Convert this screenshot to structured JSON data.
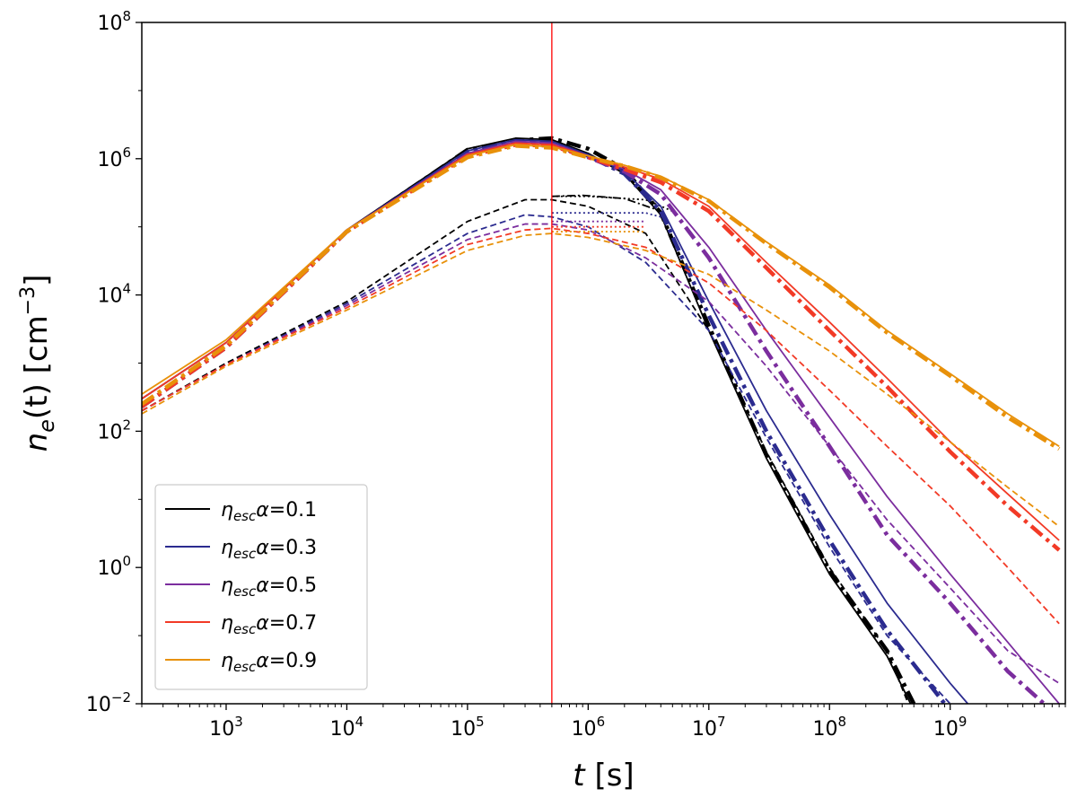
{
  "chart_data": {
    "type": "line",
    "xlabel": {
      "var": "t",
      "unit": " [s]"
    },
    "ylabel": {
      "var": "n",
      "sub": "e",
      "arg": "(t)",
      "unit": " [cm",
      "exp": "−3",
      "close": "]"
    },
    "x_scale": "log",
    "y_scale": "log",
    "xlim": [
      200,
      9000000000
    ],
    "ylim": [
      0.01,
      100000000
    ],
    "x_ticks": [
      {
        "value": 1000,
        "base": "10",
        "exp": "3"
      },
      {
        "value": 10000,
        "base": "10",
        "exp": "4"
      },
      {
        "value": 100000,
        "base": "10",
        "exp": "5"
      },
      {
        "value": 1000000,
        "base": "10",
        "exp": "6"
      },
      {
        "value": 10000000,
        "base": "10",
        "exp": "7"
      },
      {
        "value": 100000000,
        "base": "10",
        "exp": "8"
      },
      {
        "value": 1000000000,
        "base": "10",
        "exp": "9"
      }
    ],
    "y_ticks": [
      {
        "value": 0.01,
        "base": "10",
        "exp": "−2"
      },
      {
        "value": 1,
        "base": "10",
        "exp": "0"
      },
      {
        "value": 100,
        "base": "10",
        "exp": "2"
      },
      {
        "value": 10000,
        "base": "10",
        "exp": "4"
      },
      {
        "value": 1000000,
        "base": "10",
        "exp": "6"
      },
      {
        "value": 100000000,
        "base": "10",
        "exp": "8"
      }
    ],
    "grid": false,
    "legend_position": "lower-left",
    "vline": {
      "x": 500000,
      "color": "#ff0000"
    },
    "series": [
      {
        "name": "0.1",
        "color": "#000000",
        "solid": [
          [
            200,
            300
          ],
          [
            1000,
            2000
          ],
          [
            10000,
            90000
          ],
          [
            100000,
            1400000
          ],
          [
            250000,
            2000000
          ],
          [
            500000,
            1900000
          ],
          [
            1000000,
            1200000
          ],
          [
            2000000,
            600000
          ],
          [
            4000000,
            150000
          ],
          [
            10000000,
            3000
          ],
          [
            30000000,
            40
          ],
          [
            100000000,
            0.8
          ],
          [
            300000000,
            0.05
          ],
          [
            470000000,
            0.01
          ]
        ],
        "dashdot": [
          [
            200,
            230
          ],
          [
            1000,
            1700
          ],
          [
            10000,
            85000
          ],
          [
            100000,
            1350000
          ],
          [
            250000,
            1850000
          ],
          [
            500000,
            2000000
          ],
          [
            1000000,
            1400000
          ],
          [
            2000000,
            700000
          ],
          [
            4000000,
            160000
          ],
          [
            10000000,
            3500
          ],
          [
            30000000,
            45
          ],
          [
            100000000,
            0.9
          ],
          [
            300000000,
            0.06
          ],
          [
            500000000,
            0.01
          ]
        ],
        "dashed": [
          [
            200,
            200
          ],
          [
            1000,
            1000
          ],
          [
            10000,
            8000
          ],
          [
            100000,
            120000
          ],
          [
            300000,
            250000
          ],
          [
            500000,
            250000
          ],
          [
            1000000,
            200000
          ],
          [
            3000000,
            80000
          ],
          [
            10000000,
            3000
          ],
          [
            30000000,
            50
          ],
          [
            100000000,
            1
          ],
          [
            300000000,
            0.06
          ],
          [
            450000000,
            0.01
          ]
        ],
        "dotted": [
          [
            500000,
            280000
          ],
          [
            1000000,
            280000
          ],
          [
            3000000,
            250000
          ],
          [
            5000000,
            170000
          ]
        ],
        "dashdot_thin": [
          [
            500000,
            280000
          ],
          [
            900000,
            290000
          ],
          [
            2000000,
            260000
          ],
          [
            4000000,
            170000
          ]
        ]
      },
      {
        "name": "0.3",
        "color": "#2b2b8f",
        "solid": [
          [
            200,
            300
          ],
          [
            1000,
            2000
          ],
          [
            10000,
            90000
          ],
          [
            100000,
            1300000
          ],
          [
            250000,
            1900000
          ],
          [
            500000,
            1800000
          ],
          [
            1000000,
            1150000
          ],
          [
            2000000,
            650000
          ],
          [
            4000000,
            200000
          ],
          [
            10000000,
            8000
          ],
          [
            30000000,
            200
          ],
          [
            100000000,
            6
          ],
          [
            300000000,
            0.3
          ],
          [
            1000000000,
            0.02
          ],
          [
            1400000000,
            0.01
          ]
        ],
        "dashdot": [
          [
            200,
            230
          ],
          [
            1000,
            1700
          ],
          [
            10000,
            85000
          ],
          [
            100000,
            1250000
          ],
          [
            250000,
            1800000
          ],
          [
            500000,
            1700000
          ],
          [
            1000000,
            1100000
          ],
          [
            2000000,
            600000
          ],
          [
            4000000,
            170000
          ],
          [
            10000000,
            5000
          ],
          [
            30000000,
            100
          ],
          [
            100000000,
            2.5
          ],
          [
            300000000,
            0.12
          ],
          [
            900000000,
            0.01
          ]
        ],
        "dashed": [
          [
            200,
            200
          ],
          [
            1000,
            950
          ],
          [
            10000,
            7500
          ],
          [
            100000,
            80000
          ],
          [
            300000,
            150000
          ],
          [
            500000,
            140000
          ],
          [
            1000000,
            100000
          ],
          [
            3000000,
            30000
          ],
          [
            10000000,
            3000
          ],
          [
            30000000,
            80
          ],
          [
            100000000,
            2
          ],
          [
            300000000,
            0.1
          ],
          [
            1000000000,
            0.01
          ]
        ],
        "dotted": [
          [
            500000,
            160000
          ],
          [
            1000000,
            160000
          ],
          [
            3000000,
            160000
          ],
          [
            4000000,
            140000
          ]
        ]
      },
      {
        "name": "0.5",
        "color": "#7b2d9e",
        "solid": [
          [
            200,
            300
          ],
          [
            1000,
            2000
          ],
          [
            10000,
            90000
          ],
          [
            100000,
            1200000
          ],
          [
            250000,
            1800000
          ],
          [
            500000,
            1700000
          ],
          [
            1000000,
            1100000
          ],
          [
            2000000,
            700000
          ],
          [
            4000000,
            350000
          ],
          [
            10000000,
            50000
          ],
          [
            30000000,
            3000
          ],
          [
            100000000,
            160
          ],
          [
            300000000,
            11
          ],
          [
            1000000000,
            0.8
          ],
          [
            3000000000,
            0.08
          ],
          [
            8000000000,
            0.01
          ]
        ],
        "dashdot": [
          [
            200,
            230
          ],
          [
            1000,
            1700
          ],
          [
            10000,
            85000
          ],
          [
            100000,
            1150000
          ],
          [
            250000,
            1700000
          ],
          [
            500000,
            1600000
          ],
          [
            1000000,
            1050000
          ],
          [
            2000000,
            650000
          ],
          [
            4000000,
            300000
          ],
          [
            10000000,
            35000
          ],
          [
            30000000,
            1500
          ],
          [
            100000000,
            60
          ],
          [
            300000000,
            3
          ],
          [
            1000000000,
            0.3
          ],
          [
            3000000000,
            0.03
          ],
          [
            6000000000,
            0.01
          ]
        ],
        "dashed": [
          [
            200,
            200
          ],
          [
            1000,
            950
          ],
          [
            10000,
            7000
          ],
          [
            100000,
            65000
          ],
          [
            300000,
            110000
          ],
          [
            500000,
            110000
          ],
          [
            1000000,
            90000
          ],
          [
            3000000,
            35000
          ],
          [
            10000000,
            8000
          ],
          [
            30000000,
            900
          ],
          [
            100000000,
            60
          ],
          [
            300000000,
            5
          ],
          [
            1000000000,
            0.5
          ],
          [
            3000000000,
            0.06
          ],
          [
            8000000000,
            0.02
          ]
        ],
        "dotted": [
          [
            500000,
            120000
          ],
          [
            1000000,
            120000
          ],
          [
            3000000,
            120000
          ]
        ]
      },
      {
        "name": "0.7",
        "color": "#f23a26",
        "solid": [
          [
            200,
            300
          ],
          [
            1000,
            2000
          ],
          [
            10000,
            90000
          ],
          [
            100000,
            1150000
          ],
          [
            250000,
            1700000
          ],
          [
            500000,
            1600000
          ],
          [
            1000000,
            1100000
          ],
          [
            2000000,
            750000
          ],
          [
            4000000,
            500000
          ],
          [
            10000000,
            200000
          ],
          [
            30000000,
            30000
          ],
          [
            100000000,
            4000
          ],
          [
            300000000,
            600
          ],
          [
            1000000000,
            70
          ],
          [
            3000000000,
            12
          ],
          [
            8000000000,
            2.5
          ]
        ],
        "dashdot": [
          [
            200,
            230
          ],
          [
            1000,
            1700
          ],
          [
            10000,
            85000
          ],
          [
            100000,
            1100000
          ],
          [
            250000,
            1600000
          ],
          [
            500000,
            1550000
          ],
          [
            1000000,
            1050000
          ],
          [
            2000000,
            700000
          ],
          [
            4000000,
            450000
          ],
          [
            10000000,
            170000
          ],
          [
            30000000,
            25000
          ],
          [
            100000000,
            3000
          ],
          [
            300000000,
            450
          ],
          [
            1000000000,
            50
          ],
          [
            3000000000,
            8
          ],
          [
            8000000000,
            1.8
          ]
        ],
        "dashed": [
          [
            200,
            200
          ],
          [
            1000,
            950
          ],
          [
            10000,
            6500
          ],
          [
            100000,
            55000
          ],
          [
            300000,
            90000
          ],
          [
            500000,
            95000
          ],
          [
            1000000,
            80000
          ],
          [
            3000000,
            50000
          ],
          [
            10000000,
            15000
          ],
          [
            30000000,
            3000
          ],
          [
            100000000,
            400
          ],
          [
            300000000,
            60
          ],
          [
            1000000000,
            8
          ],
          [
            3000000000,
            1
          ],
          [
            8000000000,
            0.15
          ]
        ],
        "dotted": [
          [
            500000,
            100000
          ],
          [
            1000000,
            100000
          ],
          [
            3000000,
            100000
          ]
        ]
      },
      {
        "name": "0.9",
        "color": "#e8910a",
        "solid": [
          [
            200,
            350
          ],
          [
            1000,
            2200
          ],
          [
            10000,
            90000
          ],
          [
            100000,
            1100000
          ],
          [
            250000,
            1600000
          ],
          [
            500000,
            1500000
          ],
          [
            1000000,
            1100000
          ],
          [
            2000000,
            800000
          ],
          [
            4000000,
            550000
          ],
          [
            10000000,
            250000
          ],
          [
            30000000,
            60000
          ],
          [
            100000000,
            14000
          ],
          [
            300000000,
            3000
          ],
          [
            1000000000,
            700
          ],
          [
            3000000000,
            180
          ],
          [
            8000000000,
            60
          ]
        ],
        "dashdot": [
          [
            200,
            250
          ],
          [
            1000,
            1800
          ],
          [
            10000,
            85000
          ],
          [
            100000,
            1050000
          ],
          [
            250000,
            1550000
          ],
          [
            500000,
            1450000
          ],
          [
            1000000,
            1050000
          ],
          [
            2000000,
            780000
          ],
          [
            4000000,
            530000
          ],
          [
            10000000,
            240000
          ],
          [
            30000000,
            57000
          ],
          [
            100000000,
            13000
          ],
          [
            300000000,
            2800
          ],
          [
            1000000000,
            650
          ],
          [
            3000000000,
            160
          ],
          [
            8000000000,
            55
          ]
        ],
        "dashed": [
          [
            200,
            180
          ],
          [
            1000,
            900
          ],
          [
            10000,
            6000
          ],
          [
            100000,
            45000
          ],
          [
            300000,
            75000
          ],
          [
            500000,
            80000
          ],
          [
            1000000,
            70000
          ],
          [
            3000000,
            45000
          ],
          [
            10000000,
            20000
          ],
          [
            30000000,
            6000
          ],
          [
            100000000,
            1500
          ],
          [
            300000000,
            350
          ],
          [
            1000000000,
            70
          ],
          [
            3000000000,
            15
          ],
          [
            8000000000,
            4
          ]
        ],
        "dotted": [
          [
            500000,
            85000
          ],
          [
            1000000,
            85000
          ],
          [
            3000000,
            85000
          ]
        ]
      }
    ],
    "legend": {
      "label_prefix": {
        "sym": "η",
        "sub": "esc",
        "after": "α="
      }
    }
  }
}
